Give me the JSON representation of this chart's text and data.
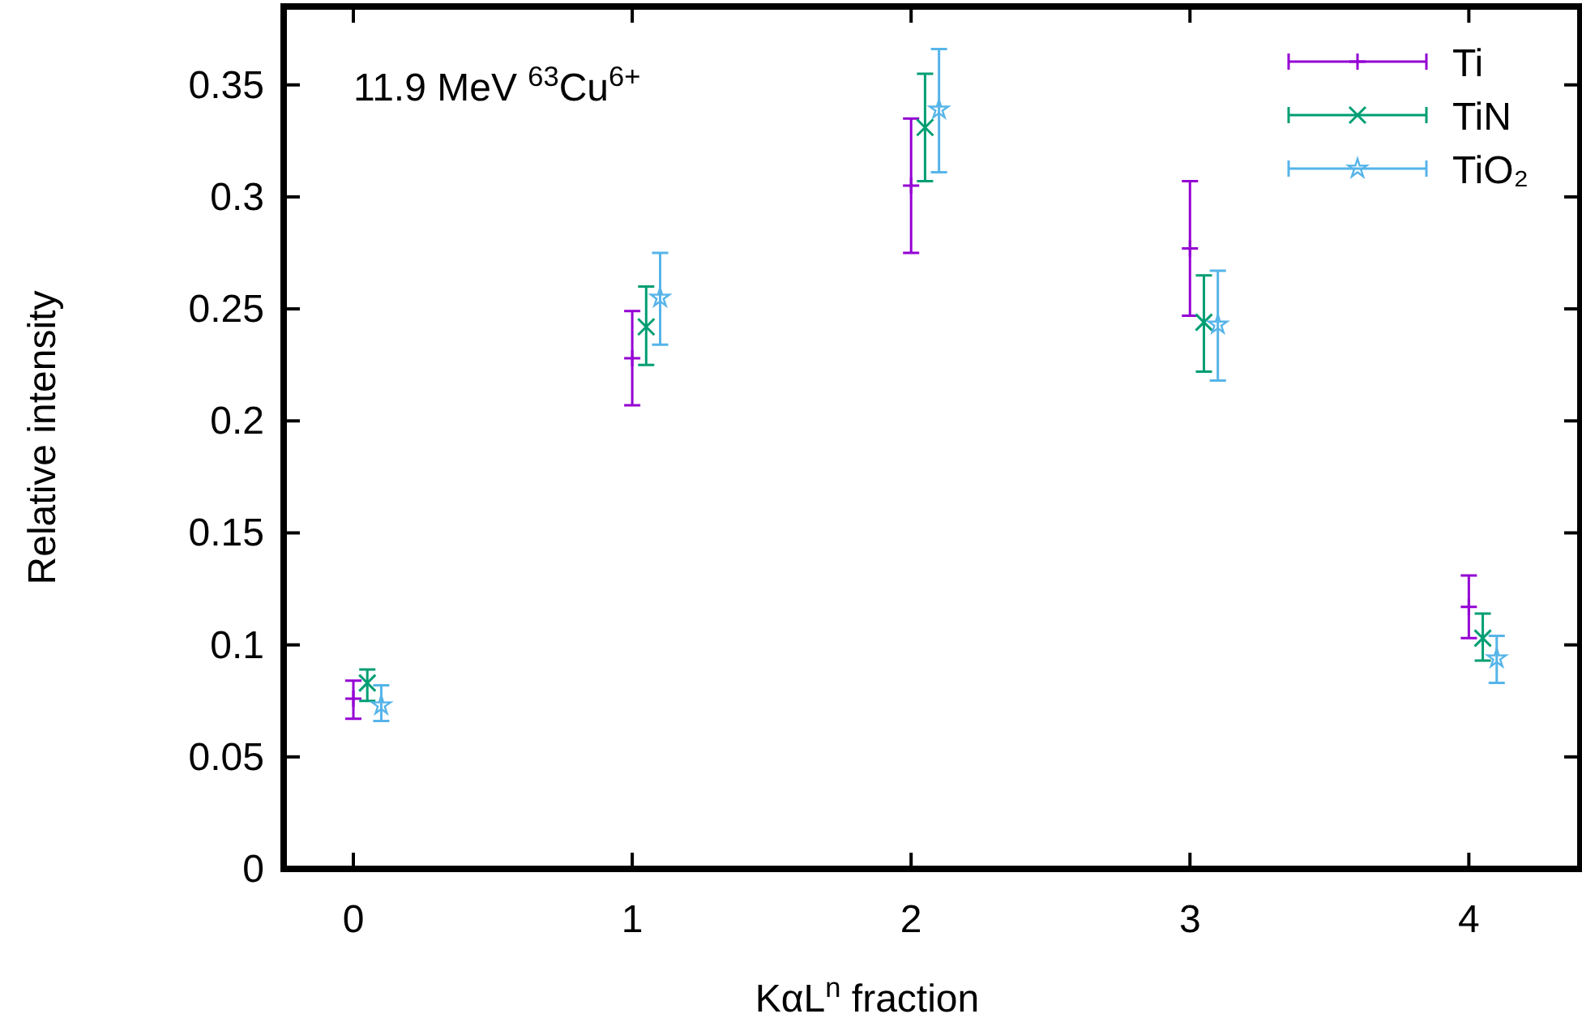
{
  "chart_data": {
    "type": "scatter",
    "xlabel": "KαL$^{n}$ fraction",
    "ylabel": "Relative intensity",
    "annotations": [
      "11.9 MeV $^{63}$Cu$^{6+}$"
    ],
    "xlim": [
      -0.25,
      4.4
    ],
    "xticks": [
      0,
      1,
      2,
      3,
      4
    ],
    "ylim": [
      0,
      0.385
    ],
    "yticks": [
      0,
      0.05,
      0.1,
      0.15,
      0.2,
      0.25,
      0.3,
      0.35
    ],
    "grid": false,
    "legend": "top right",
    "series": [
      {
        "name": "Ti",
        "color": "#9400d3",
        "marker": "plus",
        "x": [
          0,
          1,
          2,
          3,
          4
        ],
        "values": [
          0.076,
          0.228,
          0.305,
          0.277,
          0.117
        ],
        "errors": [
          [
            0.067,
            0.084
          ],
          [
            0.207,
            0.249
          ],
          [
            0.275,
            0.335
          ],
          [
            0.247,
            0.307
          ],
          [
            0.103,
            0.131
          ]
        ]
      },
      {
        "name": "TiN",
        "color": "#009e73",
        "marker": "cross",
        "x": [
          0.05,
          1.05,
          2.05,
          3.05,
          4.05
        ],
        "values": [
          0.083,
          0.242,
          0.331,
          0.244,
          0.103
        ],
        "errors": [
          [
            0.075,
            0.089
          ],
          [
            0.225,
            0.26
          ],
          [
            0.307,
            0.355
          ],
          [
            0.222,
            0.265
          ],
          [
            0.093,
            0.114
          ]
        ]
      },
      {
        "name": "TiO₂",
        "color": "#56b4e9",
        "marker": "star",
        "x": [
          0.1,
          1.1,
          2.1,
          3.1,
          4.1
        ],
        "values": [
          0.073,
          0.255,
          0.339,
          0.243,
          0.094
        ],
        "errors": [
          [
            0.066,
            0.082
          ],
          [
            0.234,
            0.275
          ],
          [
            0.311,
            0.366
          ],
          [
            0.218,
            0.267
          ],
          [
            0.083,
            0.104
          ]
        ]
      }
    ]
  }
}
